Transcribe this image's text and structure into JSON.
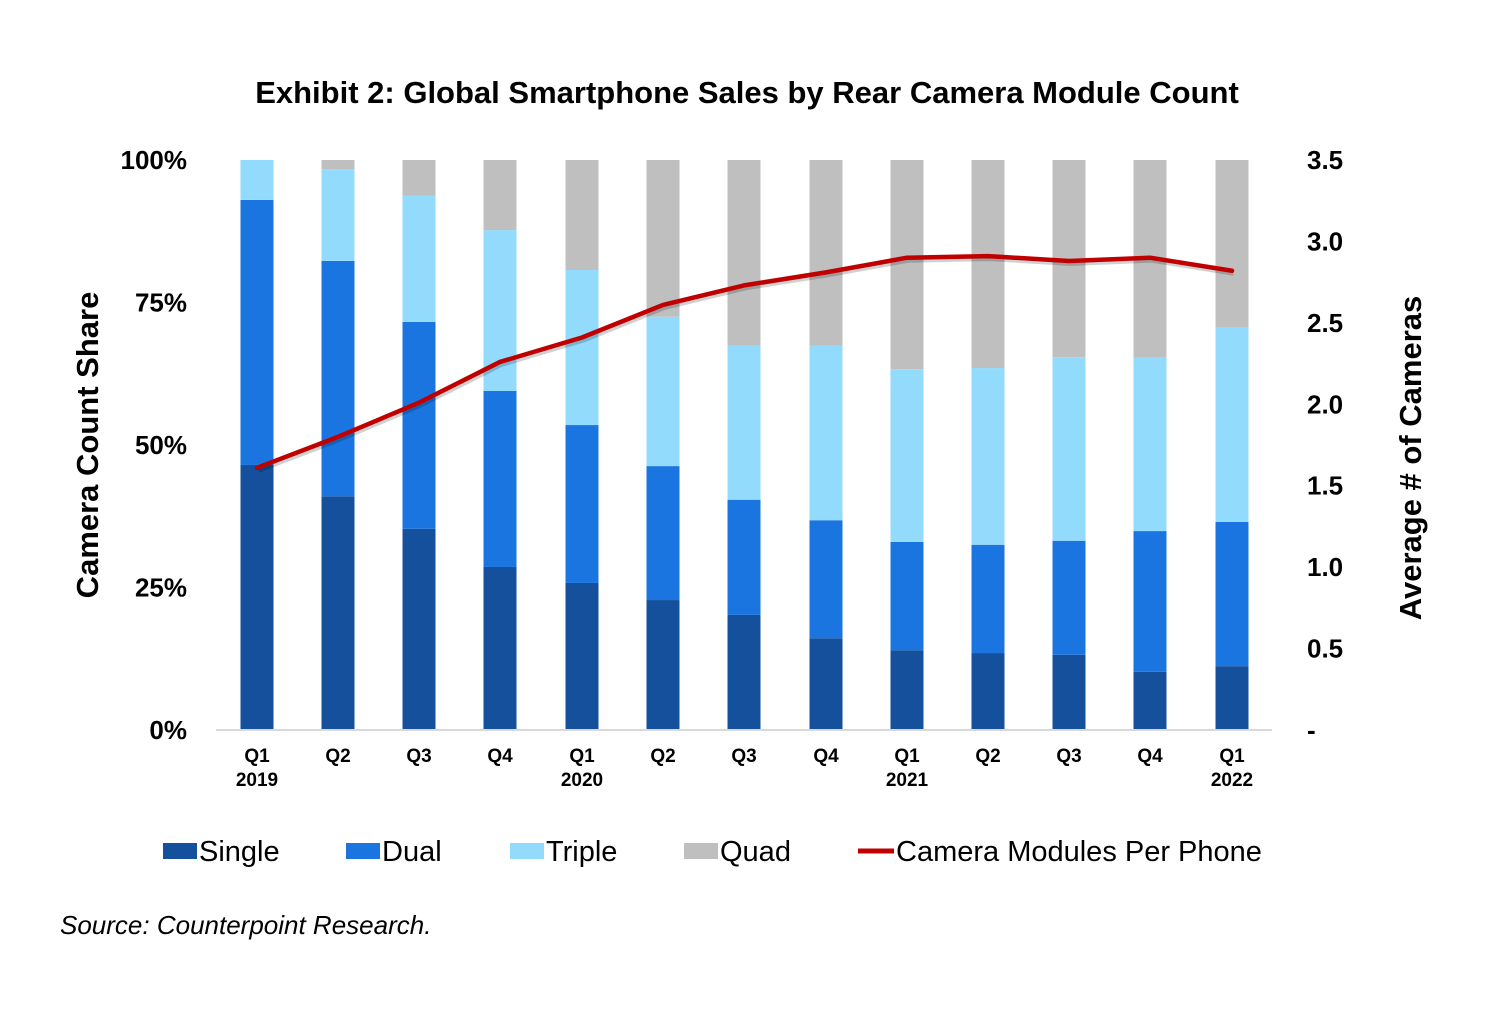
{
  "chart_data": {
    "type": "bar",
    "stacked": true,
    "title": "Exhibit 2: Global Smartphone Sales by Rear Camera Module Count",
    "categories": [
      [
        "Q1",
        "2019"
      ],
      [
        "Q2",
        ""
      ],
      [
        "Q3",
        ""
      ],
      [
        "Q4",
        ""
      ],
      [
        "Q1",
        "2020"
      ],
      [
        "Q2",
        ""
      ],
      [
        "Q3",
        ""
      ],
      [
        "Q4",
        ""
      ],
      [
        "Q1",
        "2021"
      ],
      [
        "Q2",
        ""
      ],
      [
        "Q3",
        ""
      ],
      [
        "Q4",
        ""
      ],
      [
        "Q1",
        "2022"
      ]
    ],
    "ylabel": "Camera Count Share",
    "ylim": [
      0,
      100
    ],
    "yticks": [
      "0%",
      "25%",
      "50%",
      "75%",
      "100%"
    ],
    "ylabel_right": "Average # of Cameras",
    "ylim_right": [
      0,
      3.5
    ],
    "yticks_right": [
      "-",
      "0.5",
      "1.0",
      "1.5",
      "2.0",
      "2.5",
      "3.0",
      "3.5"
    ],
    "grid": false,
    "legend_position": "bottom",
    "series": [
      {
        "name": "Single",
        "kind": "bar",
        "axis": "left",
        "color": "#14509C",
        "values": [
          46.5,
          41.0,
          35.3,
          28.6,
          25.8,
          22.8,
          20.2,
          16.1,
          14.0,
          13.5,
          13.2,
          10.2,
          11.2
        ]
      },
      {
        "name": "Dual",
        "kind": "bar",
        "axis": "left",
        "color": "#1B75E0",
        "values": [
          46.5,
          41.3,
          36.3,
          30.9,
          27.7,
          23.5,
          20.2,
          20.7,
          19.0,
          19.0,
          20.0,
          24.7,
          25.3
        ]
      },
      {
        "name": "Triple",
        "kind": "bar",
        "axis": "left",
        "color": "#93DBFC",
        "values": [
          7.0,
          16.1,
          22.1,
          28.2,
          27.2,
          26.2,
          27.0,
          30.6,
          30.3,
          31.0,
          32.2,
          30.4,
          34.2
        ]
      },
      {
        "name": "Quad",
        "kind": "bar",
        "axis": "left",
        "color": "#BFBFBF",
        "values": [
          0.0,
          1.6,
          6.3,
          12.3,
          19.3,
          27.5,
          32.6,
          32.6,
          36.7,
          36.5,
          34.6,
          34.7,
          29.3
        ]
      },
      {
        "name": "Camera Modules Per Phone",
        "kind": "line",
        "axis": "right",
        "color": "#C00000",
        "values": [
          1.61,
          1.8,
          2.01,
          2.26,
          2.41,
          2.61,
          2.73,
          2.81,
          2.9,
          2.91,
          2.88,
          2.9,
          2.82
        ]
      }
    ]
  },
  "source": "Source: Counterpoint Research."
}
